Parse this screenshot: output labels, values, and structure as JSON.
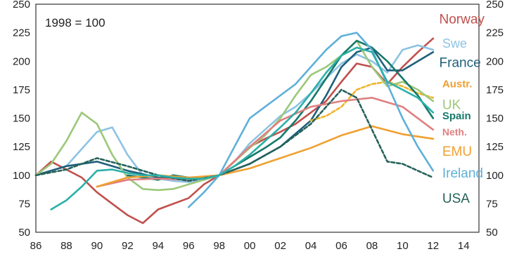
{
  "chart_data": {
    "type": "line",
    "title": "",
    "xlabel": "",
    "ylabel": "",
    "note": "1998 = 100",
    "xlim": [
      1986,
      2015
    ],
    "ylim": [
      50,
      250
    ],
    "x_tick_labels": [
      "86",
      "88",
      "90",
      "92",
      "94",
      "96",
      "98",
      "00",
      "02",
      "04",
      "06",
      "08",
      "10",
      "12",
      "14"
    ],
    "x_tick_values": [
      1986,
      1988,
      1990,
      1992,
      1994,
      1996,
      1998,
      2000,
      2002,
      2004,
      2006,
      2008,
      2010,
      2012,
      2014
    ],
    "y_tick_values": [
      50,
      75,
      100,
      125,
      150,
      175,
      200,
      225,
      250
    ],
    "left_y_tick_labels": [
      "50",
      "75",
      "100",
      "125",
      "150",
      "175",
      "200",
      "225",
      "250"
    ],
    "right_y_tick_labels": [
      "50",
      "75",
      "100",
      "125",
      "150",
      "175",
      "200",
      "225",
      "250"
    ],
    "grid": false,
    "legend": "inline-right",
    "series": [
      {
        "name": "Norway",
        "color": "#c0504d",
        "dashed": false,
        "x": [
          1986,
          1987,
          1988,
          1989,
          1990,
          1991,
          1992,
          1993,
          1994,
          1995,
          1996,
          1997,
          1998,
          1999,
          2000,
          2001,
          2002,
          2003,
          2004,
          2005,
          2006,
          2007,
          2008,
          2009,
          2010,
          2011,
          2012
        ],
        "y": [
          100,
          112,
          105,
          98,
          85,
          75,
          65,
          58,
          70,
          75,
          80,
          92,
          100,
          112,
          125,
          132,
          138,
          145,
          155,
          165,
          182,
          198,
          195,
          180,
          195,
          208,
          220
        ]
      },
      {
        "name": "Swe",
        "color": "#8dc3e4",
        "dashed": false,
        "x": [
          1986,
          1988,
          1990,
          1991,
          1992,
          1993,
          1994,
          1995,
          1996,
          1997,
          1998,
          1999,
          2000,
          2001,
          2002,
          2003,
          2004,
          2005,
          2006,
          2007,
          2008,
          2009,
          2010,
          2011,
          2012
        ],
        "y": [
          100,
          108,
          138,
          142,
          118,
          100,
          97,
          95,
          94,
          96,
          100,
          112,
          128,
          140,
          152,
          160,
          172,
          185,
          198,
          206,
          200,
          190,
          210,
          214,
          210
        ]
      },
      {
        "name": "France",
        "color": "#1f5f7a",
        "dashed": false,
        "x": [
          1986,
          1988,
          1990,
          1992,
          1994,
          1996,
          1998,
          2000,
          2002,
          2004,
          2005,
          2006,
          2007,
          2008,
          2009,
          2010,
          2011,
          2012
        ],
        "y": [
          100,
          108,
          112,
          104,
          98,
          96,
          100,
          110,
          125,
          148,
          170,
          195,
          208,
          212,
          192,
          192,
          200,
          208
        ]
      },
      {
        "name": "Austr.",
        "color": "#f0b429",
        "dashed": true,
        "x": [
          2004,
          2005,
          2006,
          2007,
          2008,
          2009,
          2010,
          2011,
          2012
        ],
        "y": [
          148,
          152,
          160,
          175,
          180,
          182,
          178,
          172,
          168
        ]
      },
      {
        "name": "UK",
        "color": "#9cc87a",
        "dashed": false,
        "x": [
          1986,
          1987,
          1988,
          1989,
          1990,
          1991,
          1992,
          1993,
          1994,
          1995,
          1996,
          1997,
          1998,
          1999,
          2000,
          2001,
          2002,
          2003,
          2004,
          2005,
          2006,
          2007,
          2008,
          2009,
          2010,
          2011,
          2012
        ],
        "y": [
          100,
          110,
          130,
          155,
          145,
          118,
          98,
          88,
          87,
          88,
          92,
          96,
          100,
          112,
          124,
          135,
          150,
          170,
          188,
          195,
          205,
          218,
          195,
          178,
          182,
          175,
          165
        ]
      },
      {
        "name": "Spain",
        "color": "#16796a",
        "dashed": false,
        "x": [
          1992,
          1993,
          1994,
          1995,
          1996,
          1997,
          1998,
          1999,
          2000,
          2001,
          2002,
          2003,
          2004,
          2005,
          2006,
          2007,
          2008,
          2009,
          2010,
          2011,
          2012
        ],
        "y": [
          100,
          98,
          96,
          100,
          98,
          97,
          100,
          108,
          116,
          124,
          133,
          148,
          165,
          185,
          205,
          218,
          212,
          200,
          185,
          170,
          150
        ]
      },
      {
        "name": "Neth.",
        "color": "#e08080",
        "dashed": false,
        "x": [
          1990,
          1992,
          1994,
          1996,
          1998,
          2000,
          2002,
          2004,
          2006,
          2008,
          2010,
          2012
        ],
        "y": [
          90,
          96,
          97,
          96,
          100,
          125,
          148,
          160,
          165,
          168,
          160,
          140
        ]
      },
      {
        "name": "EMU",
        "color": "#f0a030",
        "dashed": false,
        "x": [
          1990,
          1992,
          1994,
          1996,
          1998,
          2000,
          2002,
          2004,
          2006,
          2008,
          2010,
          2012
        ],
        "y": [
          90,
          98,
          100,
          98,
          100,
          106,
          115,
          124,
          135,
          143,
          136,
          132
        ]
      },
      {
        "name": "Ireland",
        "color": "#5fb0d8",
        "dashed": false,
        "x": [
          1996,
          1997,
          1998,
          1999,
          2000,
          2001,
          2002,
          2003,
          2004,
          2005,
          2006,
          2007,
          2008,
          2009,
          2010,
          2011,
          2012
        ],
        "y": [
          72,
          85,
          100,
          125,
          150,
          160,
          170,
          180,
          195,
          210,
          222,
          225,
          210,
          180,
          150,
          125,
          104
        ]
      },
      {
        "name": "USA",
        "color": "#25625a",
        "dashed": true,
        "x": [
          1986,
          1988,
          1990,
          1992,
          1994,
          1996,
          1998,
          2000,
          2002,
          2004,
          2005,
          2006,
          2007,
          2008,
          2009,
          2010,
          2011,
          2012
        ],
        "y": [
          100,
          105,
          115,
          108,
          100,
          95,
          100,
          110,
          125,
          145,
          160,
          175,
          168,
          140,
          112,
          110,
          104,
          98
        ]
      },
      {
        "name": "",
        "color": "#2bb0a8",
        "dashed": false,
        "x": [
          1987,
          1988,
          1989,
          1990,
          1991,
          1992,
          1993,
          1994,
          1995,
          1996,
          1997,
          1998,
          1999,
          2000,
          2001,
          2002,
          2003,
          2004,
          2005,
          2006,
          2007,
          2008,
          2009,
          2010,
          2011,
          2012
        ],
        "y": [
          70,
          78,
          90,
          104,
          105,
          102,
          100,
          100,
          98,
          97,
          97,
          100,
          108,
          118,
          130,
          142,
          155,
          172,
          190,
          205,
          212,
          208,
          182,
          175,
          168,
          155
        ]
      }
    ],
    "labels": [
      {
        "text": "Norway",
        "color": "#c0504d",
        "size": 19,
        "weight": "normal",
        "x": 2012.4,
        "y": 233
      },
      {
        "text": "Swe",
        "color": "#8dc3e4",
        "size": 18,
        "weight": "normal",
        "x": 2012.6,
        "y": 212
      },
      {
        "text": "France",
        "color": "#1f5f7a",
        "size": 19,
        "weight": "normal",
        "x": 2012.4,
        "y": 195
      },
      {
        "text": "Austr.",
        "color": "#f0a030",
        "size": 15,
        "weight": "bold",
        "x": 2012.6,
        "y": 177
      },
      {
        "text": "UK",
        "color": "#9cc87a",
        "size": 19,
        "weight": "normal",
        "x": 2012.6,
        "y": 158
      },
      {
        "text": "Spain",
        "color": "#16796a",
        "size": 15,
        "weight": "bold",
        "x": 2012.6,
        "y": 149
      },
      {
        "text": "Neth.",
        "color": "#e08080",
        "size": 14,
        "weight": "bold",
        "x": 2012.6,
        "y": 135
      },
      {
        "text": "EMU",
        "color": "#f0a030",
        "size": 19,
        "weight": "normal",
        "x": 2012.6,
        "y": 117
      },
      {
        "text": "Ireland",
        "color": "#5fb0d8",
        "size": 19,
        "weight": "normal",
        "x": 2012.6,
        "y": 98
      },
      {
        "text": "USA",
        "color": "#25625a",
        "size": 19,
        "weight": "normal",
        "x": 2012.6,
        "y": 76
      }
    ]
  }
}
